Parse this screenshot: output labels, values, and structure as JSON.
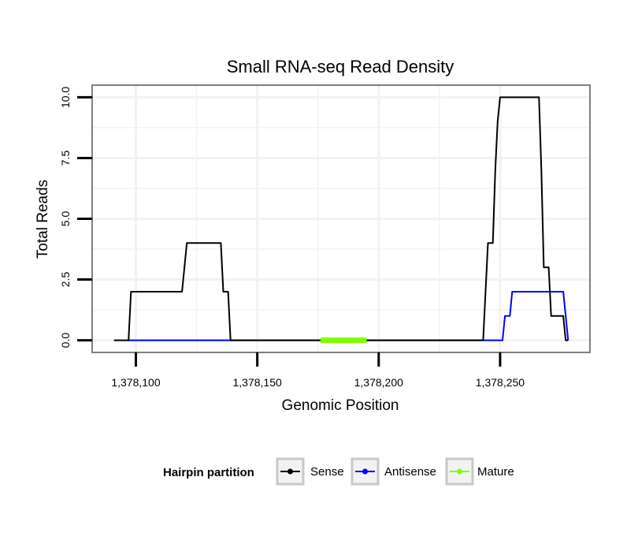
{
  "chart_data": {
    "type": "line",
    "title": "Small RNA-seq Read Density",
    "xlabel": "Genomic Position",
    "ylabel": "Total Reads",
    "xlim": [
      1378082,
      1378287
    ],
    "ylim": [
      -0.5,
      10.5
    ],
    "x_ticks": [
      1378100,
      1378150,
      1378200,
      1378250
    ],
    "x_tick_labels": [
      "1,378,100",
      "1,378,150",
      "1,378,200",
      "1,378,250"
    ],
    "y_ticks": [
      0,
      2.5,
      5,
      7.5,
      10
    ],
    "y_tick_labels": [
      "0.0",
      "2.5",
      "5.0",
      "7.5",
      "10.0"
    ],
    "grid": true,
    "legend_placement": "bottom",
    "legend_title": "Hairpin partition",
    "series": [
      {
        "name": "Sense",
        "color": "#000000",
        "x": [
          1378091,
          1378097,
          1378098,
          1378119,
          1378121,
          1378135,
          1378136,
          1378138,
          1378139,
          1378243,
          1378245,
          1378247,
          1378248,
          1378249,
          1378250,
          1378251,
          1378266,
          1378267,
          1378268,
          1378270,
          1378271,
          1378276,
          1378277,
          1378278
        ],
        "y": [
          0,
          0,
          2,
          2,
          4,
          4,
          2,
          2,
          0,
          0,
          4,
          4,
          7,
          9,
          10,
          10,
          10,
          7,
          3,
          3,
          1,
          1,
          0,
          0
        ]
      },
      {
        "name": "Antisense",
        "color": "#0000ff",
        "x": [
          1378097,
          1378251,
          1378252,
          1378254,
          1378255,
          1378276,
          1378278
        ],
        "y": [
          0,
          0,
          1,
          1,
          2,
          2,
          0
        ]
      },
      {
        "name": "Mature",
        "color": "#7fff00",
        "x": [
          1378176,
          1378195
        ],
        "y": [
          0,
          0
        ]
      }
    ]
  }
}
